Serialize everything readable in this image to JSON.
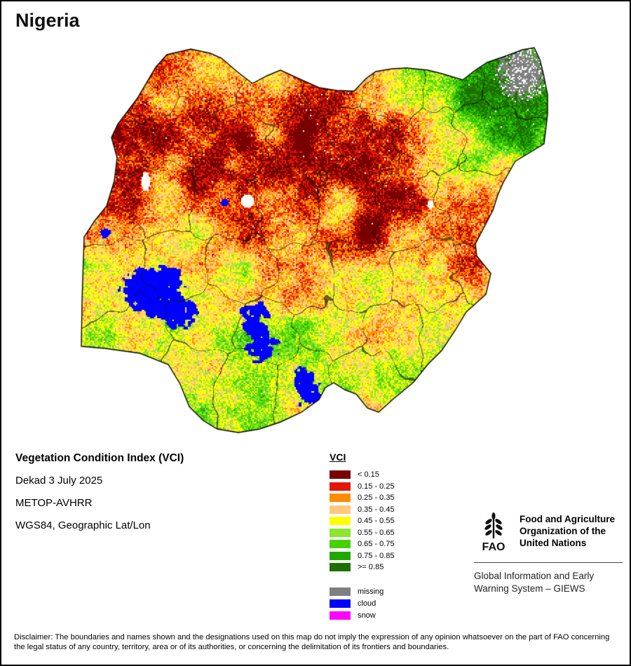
{
  "page": {
    "title": "Nigeria",
    "background": "#ffffff",
    "border_color": "#000000"
  },
  "info": {
    "lines": [
      "Vegetation Condition Index (VCI)",
      "Dekad 3 July 2025",
      "METOP-AVHRR",
      "WGS84, Geographic Lat/Lon"
    ]
  },
  "legend": {
    "title": "VCI",
    "classes": [
      {
        "label": "< 0.15",
        "color": "#780000"
      },
      {
        "label": "0.15 - 0.25",
        "color": "#e31700"
      },
      {
        "label": "0.25 - 0.35",
        "color": "#ff8c00"
      },
      {
        "label": "0.35 - 0.45",
        "color": "#ffc97d"
      },
      {
        "label": "0.45 - 0.55",
        "color": "#ffff00"
      },
      {
        "label": "0.55 - 0.65",
        "color": "#8ce62d"
      },
      {
        "label": "0.65 - 0.75",
        "color": "#46d200"
      },
      {
        "label": "0.75 - 0.85",
        "color": "#1fa800"
      },
      {
        "label": ">= 0.85",
        "color": "#1d7000"
      }
    ],
    "extras": [
      {
        "label": "missing",
        "color": "#808080"
      },
      {
        "label": "cloud",
        "color": "#0000ff"
      },
      {
        "label": "snow",
        "color": "#ff00ff"
      }
    ]
  },
  "map": {
    "class_breaks": [
      0.15,
      0.25,
      0.35,
      0.45,
      0.55,
      0.65,
      0.75,
      0.85
    ],
    "boundary_color": "#000000",
    "water_color": "#ffffff"
  },
  "branding": {
    "fao_logo_label": "FAO",
    "fao_name_lines": [
      "Food and Agriculture",
      "Organization of the",
      "United Nations"
    ],
    "giews_lines": [
      "Global Information and Early",
      "Warning System – GIEWS"
    ]
  },
  "disclaimer": "Disclaimer: The boundaries and names shown and the designations used on this map do not imply the expression of any opinion whatsoever on the part of FAO concerning the legal status of any country, territory, area or of its authorities, or concerning the delimitation of its frontiers and boundaries."
}
